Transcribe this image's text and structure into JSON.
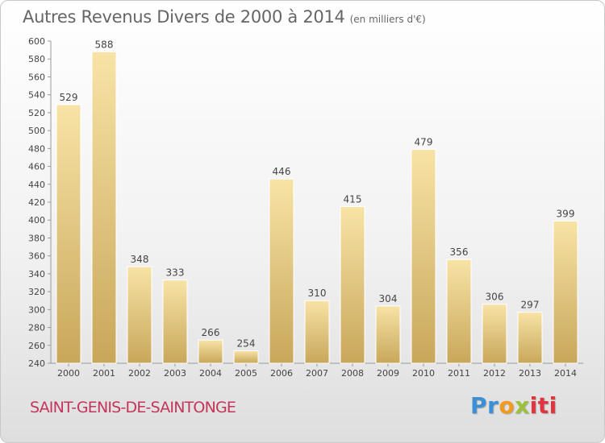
{
  "chart_data": {
    "type": "bar",
    "title": "Autres Revenus Divers de 2000 à 2014",
    "subtitle": "(en milliers d'€)",
    "categories": [
      "2000",
      "2001",
      "2002",
      "2003",
      "2004",
      "2005",
      "2006",
      "2007",
      "2008",
      "2009",
      "2010",
      "2011",
      "2012",
      "2013",
      "2014"
    ],
    "values": [
      529,
      588,
      348,
      333,
      266,
      254,
      446,
      310,
      415,
      304,
      479,
      356,
      306,
      297,
      399
    ],
    "ylim": [
      240,
      600
    ],
    "ytick_step": 20,
    "grid": false,
    "legend": "none",
    "bar_color_light": "#f7e0a2",
    "bar_color_dark": "#c9a95c"
  },
  "footer": {
    "commune": "SAINT-GENIS-DE-SAINTONGE",
    "commune_color": "#c4355a",
    "logo_parts": [
      "Pr",
      "o",
      "x",
      "iti"
    ],
    "logo_colors": [
      "#3a8fd6",
      "#f29a1d",
      "#9bc23a",
      "#e0353e"
    ]
  }
}
